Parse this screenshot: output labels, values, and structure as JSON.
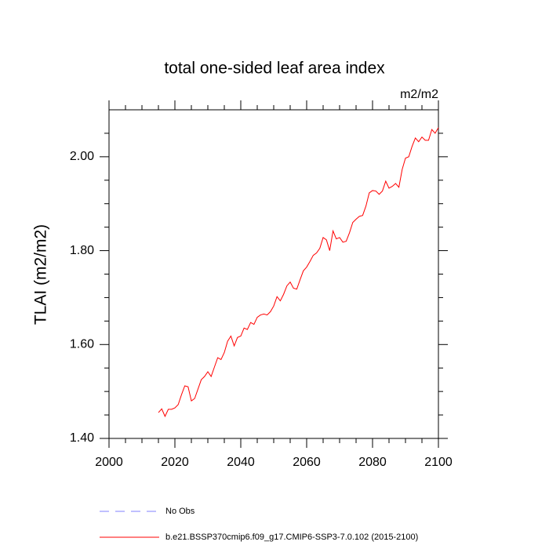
{
  "chart_data": {
    "type": "line",
    "title": "total one-sided leaf area index",
    "units": "m2/m2",
    "y_label": "TLAI  (m2/m2)",
    "x": [
      2015,
      2016,
      2017,
      2018,
      2019,
      2020,
      2021,
      2022,
      2023,
      2024,
      2025,
      2026,
      2027,
      2028,
      2029,
      2030,
      2031,
      2032,
      2033,
      2034,
      2035,
      2036,
      2037,
      2038,
      2039,
      2040,
      2041,
      2042,
      2043,
      2044,
      2045,
      2046,
      2047,
      2048,
      2049,
      2050,
      2051,
      2052,
      2053,
      2054,
      2055,
      2056,
      2057,
      2058,
      2059,
      2060,
      2061,
      2062,
      2063,
      2064,
      2065,
      2066,
      2067,
      2068,
      2069,
      2070,
      2071,
      2072,
      2073,
      2074,
      2075,
      2076,
      2077,
      2078,
      2079,
      2080,
      2081,
      2082,
      2083,
      2084,
      2085,
      2086,
      2087,
      2088,
      2089,
      2090,
      2091,
      2092,
      2093,
      2094,
      2095,
      2096,
      2097,
      2098,
      2099,
      2100
    ],
    "series": [
      {
        "name": "b.e21.BSSP370cmip6.f09_g17.CMIP6-SSP3-7.0.102 (2015-2100)",
        "color": "#ff0000",
        "values": [
          1.455,
          1.463,
          1.447,
          1.462,
          1.462,
          1.465,
          1.472,
          1.493,
          1.512,
          1.51,
          1.48,
          1.485,
          1.505,
          1.525,
          1.532,
          1.542,
          1.532,
          1.552,
          1.572,
          1.568,
          1.583,
          1.607,
          1.618,
          1.597,
          1.615,
          1.618,
          1.635,
          1.632,
          1.647,
          1.643,
          1.658,
          1.663,
          1.665,
          1.663,
          1.67,
          1.682,
          1.702,
          1.693,
          1.707,
          1.725,
          1.733,
          1.72,
          1.718,
          1.738,
          1.757,
          1.765,
          1.777,
          1.79,
          1.795,
          1.805,
          1.828,
          1.823,
          1.8,
          1.842,
          1.825,
          1.828,
          1.818,
          1.82,
          1.838,
          1.86,
          1.867,
          1.873,
          1.875,
          1.895,
          1.923,
          1.928,
          1.927,
          1.92,
          1.927,
          1.948,
          1.933,
          1.937,
          1.943,
          1.935,
          1.973,
          1.997,
          2.0,
          2.022,
          2.04,
          2.032,
          2.042,
          2.035,
          2.035,
          2.058,
          2.05,
          2.062
        ]
      }
    ],
    "obs_label": "No Obs",
    "obs_color": "#8080ff",
    "xlim": [
      2000,
      2100
    ],
    "xticks": [
      2000,
      2020,
      2040,
      2060,
      2080,
      2100
    ],
    "xminor_ticks": [
      2005,
      2010,
      2015,
      2025,
      2030,
      2035,
      2045,
      2050,
      2055,
      2065,
      2070,
      2075,
      2085,
      2090,
      2095
    ],
    "ylim": [
      1.4,
      2.1
    ],
    "yticks": [
      {
        "value": 1.4,
        "label": "1.40"
      },
      {
        "value": 1.6,
        "label": "1.60"
      },
      {
        "value": 1.8,
        "label": "1.80"
      },
      {
        "value": 2.0,
        "label": "2.00"
      }
    ],
    "yminor_ticks": [
      1.45,
      1.5,
      1.55,
      1.65,
      1.7,
      1.75,
      1.85,
      1.9,
      1.95,
      2.05
    ]
  }
}
